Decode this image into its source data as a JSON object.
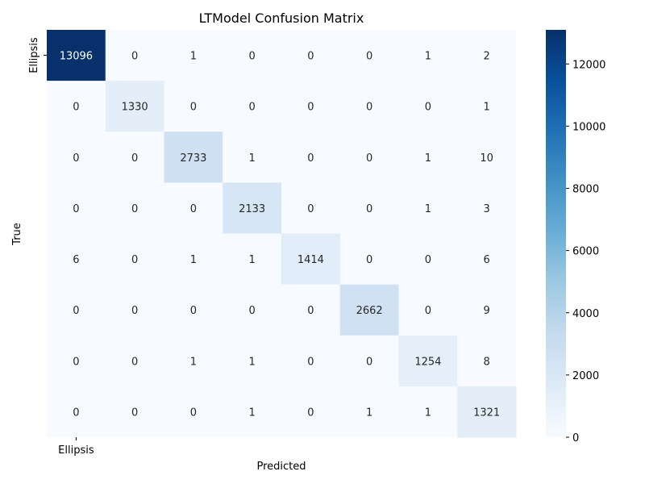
{
  "chart_data": {
    "type": "heatmap",
    "title": "LTModel Confusion Matrix",
    "xlabel": "Predicted",
    "ylabel": "True",
    "x_tick_labels": [
      "Ellipsis",
      "",
      "",
      "",
      "",
      "",
      "",
      ""
    ],
    "y_tick_labels": [
      "Ellipsis",
      "",
      "",
      "",
      "",
      "",
      "",
      ""
    ],
    "matrix": [
      [
        13096,
        0,
        1,
        0,
        0,
        0,
        1,
        2
      ],
      [
        0,
        1330,
        0,
        0,
        0,
        0,
        0,
        1
      ],
      [
        0,
        0,
        2733,
        1,
        0,
        0,
        1,
        10
      ],
      [
        0,
        0,
        0,
        2133,
        0,
        0,
        1,
        3
      ],
      [
        6,
        0,
        1,
        1,
        1414,
        0,
        0,
        6
      ],
      [
        0,
        0,
        0,
        0,
        0,
        2662,
        0,
        9
      ],
      [
        0,
        0,
        1,
        1,
        0,
        0,
        1254,
        8
      ],
      [
        0,
        0,
        0,
        1,
        0,
        1,
        1,
        1321
      ]
    ],
    "colormap": "Blues",
    "vmin": 0,
    "vmax": 13096,
    "colorbar_ticks": [
      0,
      2000,
      4000,
      6000,
      8000,
      10000,
      12000
    ]
  }
}
